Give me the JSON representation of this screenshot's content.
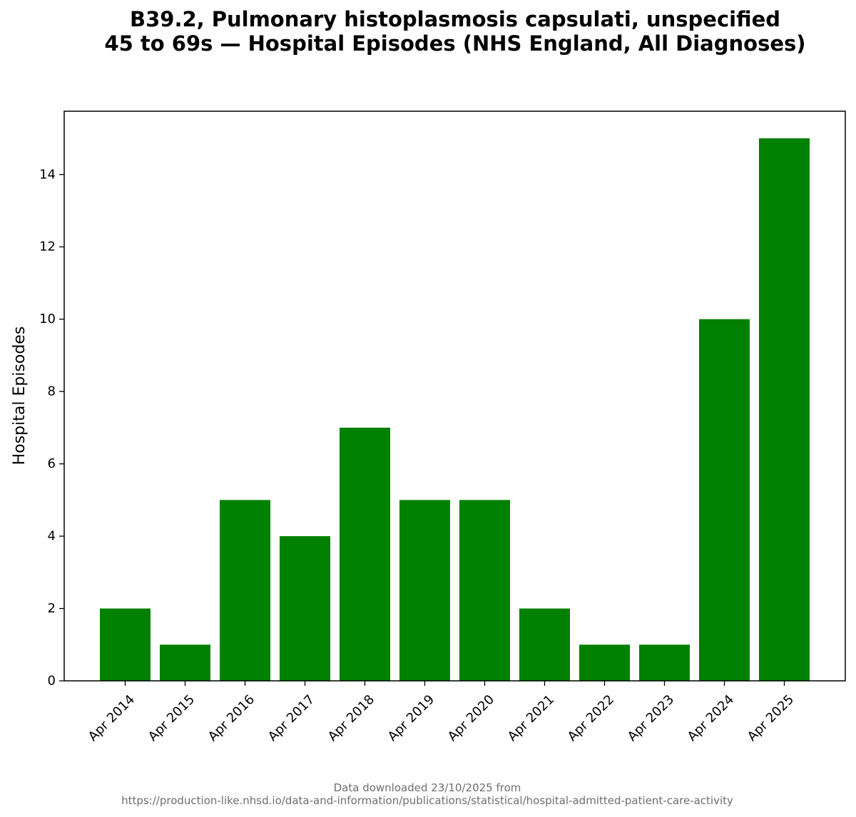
{
  "chart_data": {
    "type": "bar",
    "title_lines": [
      "B39.2, Pulmonary histoplasmosis capsulati, unspecified",
      "45 to 69s — Hospital Episodes (NHS England, All Diagnoses)"
    ],
    "xlabel": "",
    "ylabel": "Hospital Episodes",
    "categories": [
      "Apr 2014",
      "Apr 2015",
      "Apr 2016",
      "Apr 2017",
      "Apr 2018",
      "Apr 2019",
      "Apr 2020",
      "Apr 2021",
      "Apr 2022",
      "Apr 2023",
      "Apr 2024",
      "Apr 2025"
    ],
    "values": [
      2,
      1,
      5,
      4,
      7,
      5,
      5,
      2,
      1,
      1,
      10,
      15
    ],
    "ylim": [
      0,
      15.75
    ],
    "yticks": [
      0,
      2,
      4,
      6,
      8,
      10,
      12,
      14
    ],
    "bar_color": "#008000",
    "grid": false,
    "legend": "none"
  },
  "footer": {
    "line1": "Data downloaded 23/10/2025 from",
    "line2": "https://production-like.nhsd.io/data-and-information/publications/statistical/hospital-admitted-patient-care-activity"
  }
}
